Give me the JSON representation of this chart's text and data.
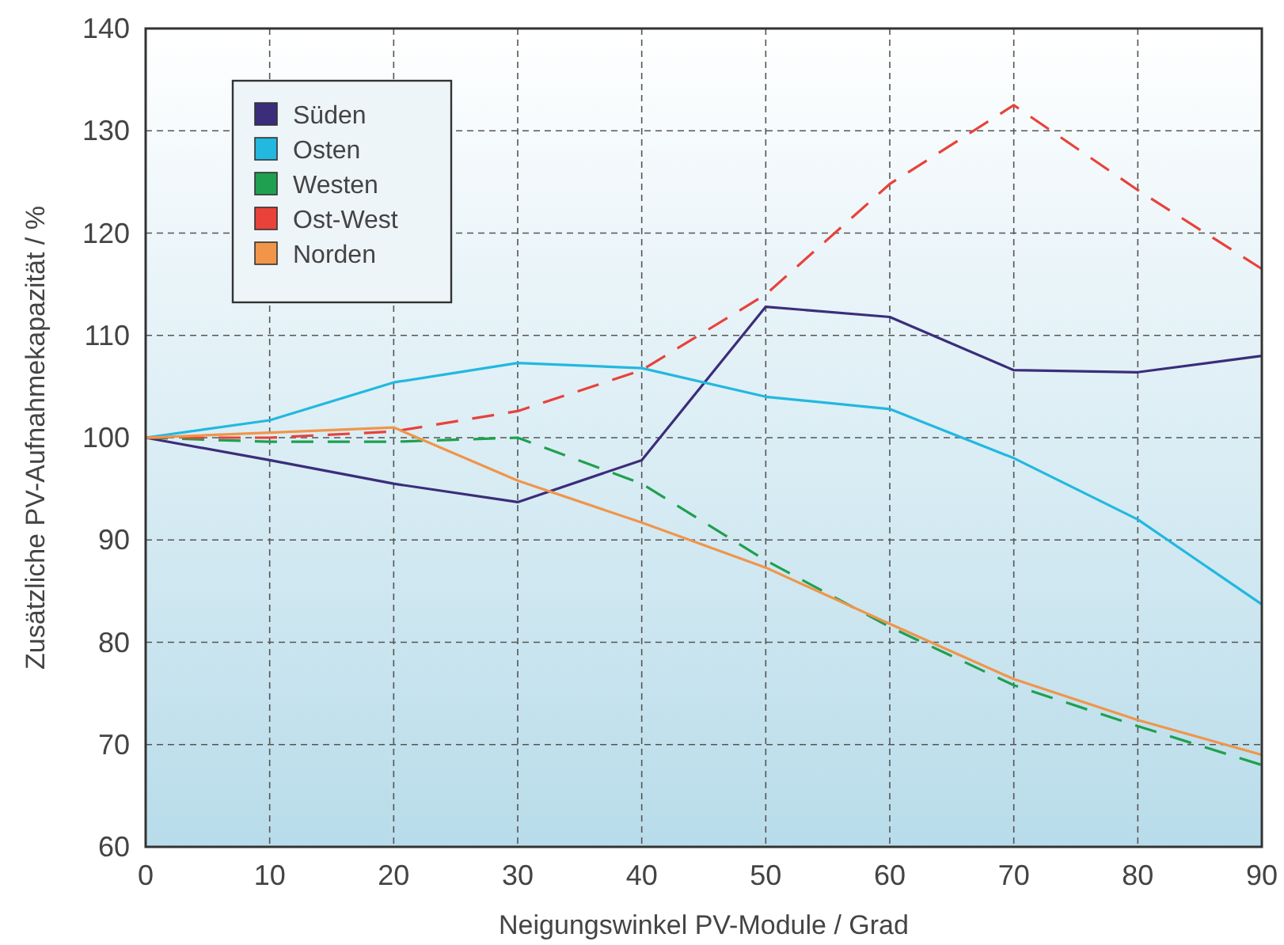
{
  "chart_data": {
    "type": "line",
    "xlabel": "Neigungswinkel PV-Module / Grad",
    "ylabel": "Zusätzliche PV-Aufnahmekapazität / %",
    "x": [
      0,
      10,
      20,
      30,
      40,
      50,
      60,
      70,
      80,
      90
    ],
    "series": [
      {
        "name": "Süden",
        "color": "#3b2d7a",
        "line_style": "solid",
        "values": [
          100,
          97.8,
          95.5,
          93.7,
          97.8,
          112.8,
          111.8,
          106.6,
          106.4,
          108
        ]
      },
      {
        "name": "Osten",
        "color": "#22b8e0",
        "line_style": "solid",
        "values": [
          100,
          101.7,
          105.4,
          107.3,
          106.8,
          104,
          102.8,
          98,
          92,
          83.7
        ]
      },
      {
        "name": "Westen",
        "color": "#1fa050",
        "line_style": "dashed",
        "values": [
          100,
          99.6,
          99.6,
          100,
          95.5,
          88,
          81.5,
          75.8,
          71.8,
          68
        ]
      },
      {
        "name": "Ost-West",
        "color": "#e8423a",
        "line_style": "dashed",
        "values": [
          100,
          100,
          100.6,
          102.6,
          106.6,
          114,
          124.8,
          132.5,
          124.2,
          116.5
        ]
      },
      {
        "name": "Norden",
        "color": "#f0954a",
        "line_style": "solid",
        "values": [
          100,
          100.5,
          101,
          95.8,
          91.7,
          87.3,
          81.8,
          76.4,
          72.4,
          69
        ]
      }
    ],
    "xlim": [
      0,
      90
    ],
    "xticks": [
      0,
      10,
      20,
      30,
      40,
      50,
      60,
      70,
      80,
      90
    ],
    "ylim": [
      60,
      140
    ],
    "yticks": [
      60,
      70,
      80,
      90,
      100,
      110,
      120,
      130,
      140
    ],
    "grid": true,
    "legend": "top left",
    "marker": "none"
  }
}
